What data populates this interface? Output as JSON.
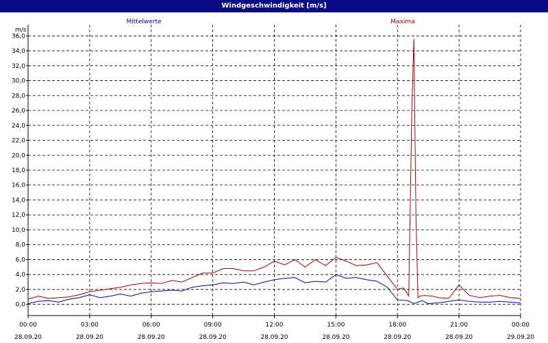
{
  "window": {
    "title": "Windgeschwindigkeit [m/s]"
  },
  "colors": {
    "titlebar": "#0a0a84",
    "mean": "#0000cc",
    "max": "#aa0000",
    "grid": "#000000"
  },
  "chart_data": {
    "type": "line",
    "title": "Windgeschwindigkeit [m/s]",
    "ylabel": "m/s",
    "ylim": [
      -1.5,
      37.5
    ],
    "grid": true,
    "y_ticks": [
      "0,0",
      "2,0",
      "4,0",
      "6,0",
      "8,0",
      "10,0",
      "12,0",
      "14,0",
      "16,0",
      "18,0",
      "20,0",
      "22,0",
      "24,0",
      "26,0",
      "28,0",
      "30,0",
      "32,0",
      "34,0",
      "36,0"
    ],
    "x_ticks": [
      {
        "time": "00:00",
        "date": "28.09.20"
      },
      {
        "time": "03:00",
        "date": "28.09.20"
      },
      {
        "time": "06:00",
        "date": "28.09.20"
      },
      {
        "time": "09:00",
        "date": "28.09.20"
      },
      {
        "time": "12:00",
        "date": "28.09.20"
      },
      {
        "time": "15:00",
        "date": "28.09.20"
      },
      {
        "time": "18:00",
        "date": "28.09.20"
      },
      {
        "time": "21:00",
        "date": "28.09.20"
      },
      {
        "time": "00:00",
        "date": "29.09.20"
      }
    ],
    "x_unit": "hours since 28.09.20 00:00",
    "xlim": [
      0,
      24
    ],
    "series": [
      {
        "name": "Mittelwerte",
        "color": "#0000cc",
        "x": [
          0,
          0.5,
          1,
          1.5,
          2,
          2.5,
          3,
          3.5,
          4,
          4.5,
          5,
          5.5,
          6,
          6.5,
          7,
          7.5,
          8,
          8.5,
          9,
          9.5,
          10,
          10.5,
          11,
          11.5,
          12,
          12.5,
          13,
          13.5,
          14,
          14.5,
          15,
          15.5,
          16,
          16.5,
          17,
          17.5,
          18,
          18.5,
          18.8,
          19,
          19.2,
          19.5,
          20,
          20.5,
          21,
          21.5,
          22,
          22.5,
          23,
          23.5,
          24
        ],
        "values": [
          0.1,
          0.4,
          0.5,
          0.3,
          0.7,
          0.9,
          1.3,
          0.9,
          1.1,
          1.4,
          1.1,
          1.5,
          1.7,
          1.8,
          1.9,
          1.8,
          2.3,
          2.5,
          2.6,
          2.9,
          2.8,
          3.0,
          2.6,
          3.0,
          3.3,
          3.5,
          3.6,
          2.9,
          3.1,
          3.0,
          4.0,
          3.5,
          3.6,
          3.3,
          3.1,
          2.3,
          0.6,
          0.5,
          0.1,
          0.3,
          0.5,
          0.1,
          0.2,
          0.4,
          0.6,
          0.4,
          0.3,
          0.3,
          0.4,
          0.3,
          0.2
        ]
      },
      {
        "name": "Maxima",
        "color": "#aa0000",
        "x": [
          0,
          0.5,
          1,
          1.5,
          2,
          2.5,
          3,
          3.5,
          4,
          4.5,
          5,
          5.5,
          6,
          6.5,
          7,
          7.5,
          8,
          8.5,
          9,
          9.5,
          10,
          10.5,
          11,
          11.5,
          12,
          12.5,
          13,
          13.5,
          14,
          14.5,
          15,
          15.5,
          16,
          16.5,
          17,
          17.5,
          18,
          18.3,
          18.55,
          18.7,
          18.8,
          18.9,
          19.0,
          19.1,
          19.3,
          19.7,
          20,
          20.5,
          21,
          21.5,
          22,
          22.5,
          23,
          23.5,
          24
        ],
        "values": [
          0.7,
          1.1,
          0.8,
          0.9,
          1.0,
          1.3,
          1.7,
          1.9,
          2.1,
          2.3,
          2.6,
          2.8,
          2.9,
          2.8,
          3.2,
          3.0,
          3.6,
          4.2,
          4.2,
          4.8,
          4.8,
          4.5,
          4.5,
          5.0,
          5.8,
          5.3,
          6.0,
          5.0,
          6.0,
          5.2,
          6.3,
          5.8,
          5.2,
          5.3,
          5.6,
          3.8,
          2.0,
          2.2,
          1.1,
          26.0,
          35.6,
          12.0,
          0.9,
          1.1,
          1.2,
          1.1,
          0.9,
          0.8,
          2.6,
          1.2,
          0.9,
          1.1,
          1.2,
          0.9,
          0.8
        ]
      }
    ],
    "legend": {
      "placement": "top",
      "entries": [
        "Mittelwerte",
        "Maxima"
      ]
    }
  }
}
